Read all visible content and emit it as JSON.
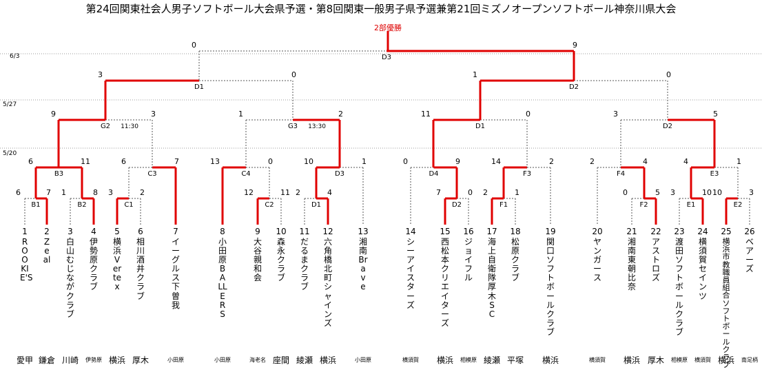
{
  "title": "第24回関東社会人男子ソフトボール大会県予選・第8回関東一般男子県予選兼第21回ミズノオープンソフトボール神奈川県大会",
  "final_label": "2部優勝",
  "dates": [
    "6/3",
    "5/27",
    "5/20"
  ],
  "colors": {
    "win": "#e00000",
    "line": "#000000",
    "dash": "#555555",
    "label": "#dd0000"
  },
  "teams": [
    {
      "no": "1",
      "name": "ROOKIE'S",
      "loc": "愛甲"
    },
    {
      "no": "2",
      "name": "Zeal",
      "loc": "鎌倉"
    },
    {
      "no": "3",
      "name": "白山むじながクラブ",
      "loc": "川崎"
    },
    {
      "no": "4",
      "name": "伊勢原クラブ",
      "loc": "伊勢原"
    },
    {
      "no": "5",
      "name": "横浜Vertex",
      "loc": "横浜"
    },
    {
      "no": "6",
      "name": "相川酒井クラブ",
      "loc": "厚木"
    },
    {
      "no": "7",
      "name": "イーグルス下曽我",
      "loc": "小田原"
    },
    {
      "no": "8",
      "name": "小田原BALLERS",
      "loc": "小田原"
    },
    {
      "no": "9",
      "name": "大谷親和会",
      "loc": "海老名"
    },
    {
      "no": "10",
      "name": "森永クラブ",
      "loc": "座間"
    },
    {
      "no": "11",
      "name": "だるまクラブ",
      "loc": "綾瀬"
    },
    {
      "no": "12",
      "name": "六角橋北町シャインズ",
      "loc": "横浜"
    },
    {
      "no": "13",
      "name": "湘南Brave",
      "loc": "小田原"
    },
    {
      "no": "14",
      "name": "シーアイスターズ",
      "loc": "横須賀"
    },
    {
      "no": "15",
      "name": "西松本クリエイターズ",
      "loc": "横浜"
    },
    {
      "no": "16",
      "name": "ジョイフル",
      "loc": "相模原"
    },
    {
      "no": "17",
      "name": "海上自衛隊厚木SC",
      "loc": "綾瀬"
    },
    {
      "no": "18",
      "name": "松原クラブ",
      "loc": "平塚"
    },
    {
      "no": "19",
      "name": "関口ソフトボールクラブ",
      "loc": "横浜"
    },
    {
      "no": "20",
      "name": "ヤンガース",
      "loc": "横須賀"
    },
    {
      "no": "21",
      "name": "湘南東朝比奈",
      "loc": "横浜"
    },
    {
      "no": "22",
      "name": "アストロズ",
      "loc": "厚木"
    },
    {
      "no": "23",
      "name": "渡田ソフトボールクラブ",
      "loc": "相模原"
    },
    {
      "no": "24",
      "name": "横須賀セインツ",
      "loc": "横須賀"
    },
    {
      "no": "25",
      "name": "横浜市教職員組合ソフトボールクラブ",
      "loc": "横浜"
    },
    {
      "no": "26",
      "name": "ベアーズ",
      "loc": "南足柄"
    }
  ],
  "matches": [
    {
      "id": "B1",
      "left": "6",
      "right": "7",
      "winner": "right"
    },
    {
      "id": "B2",
      "left": "1",
      "right": "8",
      "winner": "right"
    },
    {
      "id": "C1",
      "left": "3",
      "right": "2",
      "winner": "left"
    },
    {
      "id": "D1",
      "left": "2",
      "right": "4",
      "winner": "right"
    },
    {
      "id": "C2",
      "left": "12",
      "right": "11",
      "winner": "left"
    },
    {
      "id": "D2",
      "left": "7",
      "right": "0",
      "winner": "left"
    },
    {
      "id": "F1",
      "left": "2",
      "right": "1",
      "winner": "left"
    },
    {
      "id": "F2",
      "left": "0",
      "right": "5",
      "winner": "right"
    },
    {
      "id": "E1",
      "left": "3",
      "right": "10",
      "winner": "right"
    },
    {
      "id": "E2",
      "left": "10",
      "right": "3",
      "winner": "left"
    },
    {
      "id": "B3",
      "left": "6",
      "right": "11",
      "winner": "both"
    },
    {
      "id": "C3",
      "left": "6",
      "right": "7",
      "winner": "right"
    },
    {
      "id": "C4",
      "left": "13",
      "right": "0",
      "winner": "left"
    },
    {
      "id": "D3",
      "left": "10",
      "right": "1",
      "winner": "left"
    },
    {
      "id": "D4",
      "left": "0",
      "right": "9",
      "winner": "right"
    },
    {
      "id": "F3",
      "left": "14",
      "right": "2",
      "winner": "left"
    },
    {
      "id": "F4",
      "left": "2",
      "right": "4",
      "winner": "right"
    },
    {
      "id": "E3",
      "left": "4",
      "right": "1",
      "winner": "left"
    },
    {
      "id": "G2",
      "left": "9",
      "right": "3",
      "winner": "left",
      "time": "11:30"
    },
    {
      "id": "G3",
      "left": "1",
      "right": "2",
      "winner": "right",
      "time": "13:30"
    },
    {
      "id": "D1",
      "left": "11",
      "right": "0",
      "winner": "left"
    },
    {
      "id": "D2",
      "left": "3",
      "right": "5",
      "winner": "right"
    },
    {
      "id": "D1",
      "left": "3",
      "right": "0",
      "winner": "left"
    },
    {
      "id": "D2",
      "left": "1",
      "right": "0",
      "winner": "left"
    },
    {
      "id": "D3",
      "left": "0",
      "right": "9",
      "winner": "right"
    }
  ]
}
